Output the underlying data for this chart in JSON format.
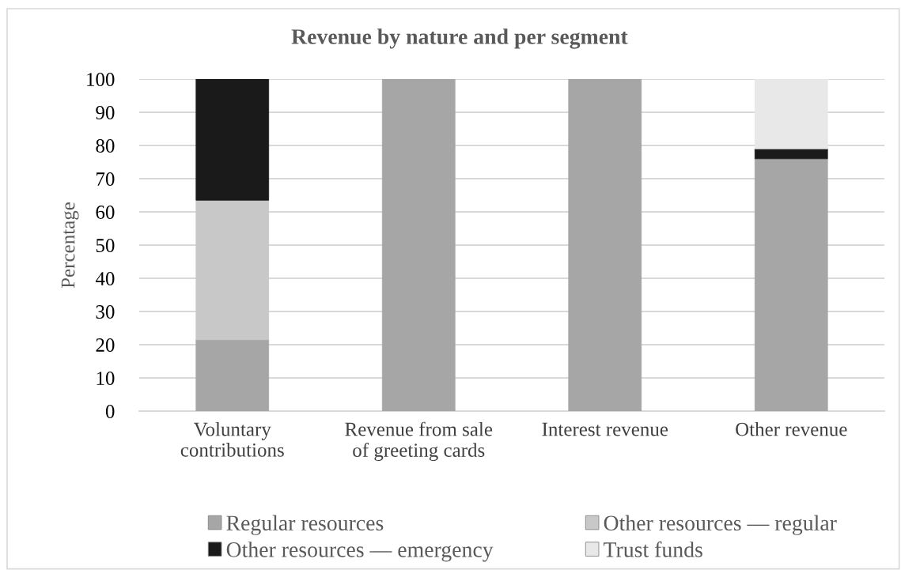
{
  "chart_data": {
    "type": "bar",
    "title": "Revenue by nature and per segment",
    "ylabel": "Percentage",
    "categories": [
      "Voluntary\ncontributions",
      "Revenue from sale\nof greeting cards",
      "Interest revenue",
      "Other revenue"
    ],
    "stacked": true,
    "series": [
      {
        "name": "Regular resources",
        "color": "#a6a6a6",
        "values": [
          21.5,
          100,
          100,
          76
        ]
      },
      {
        "name": "Other resources — regular",
        "color": "#c8c8c8",
        "values": [
          42,
          null,
          null,
          null
        ]
      },
      {
        "name": "Other resources — emergency",
        "color": "#1a1a1a",
        "values": [
          36.5,
          null,
          null,
          3
        ]
      },
      {
        "name": "Trust funds",
        "color": "#e8e8e8",
        "values": [
          null,
          null,
          null,
          21
        ]
      }
    ],
    "ylim": [
      0,
      100
    ],
    "yticks": [
      0,
      10,
      20,
      30,
      40,
      50,
      60,
      70,
      80,
      90,
      100
    ],
    "grid": "y",
    "legend": "bottom"
  }
}
